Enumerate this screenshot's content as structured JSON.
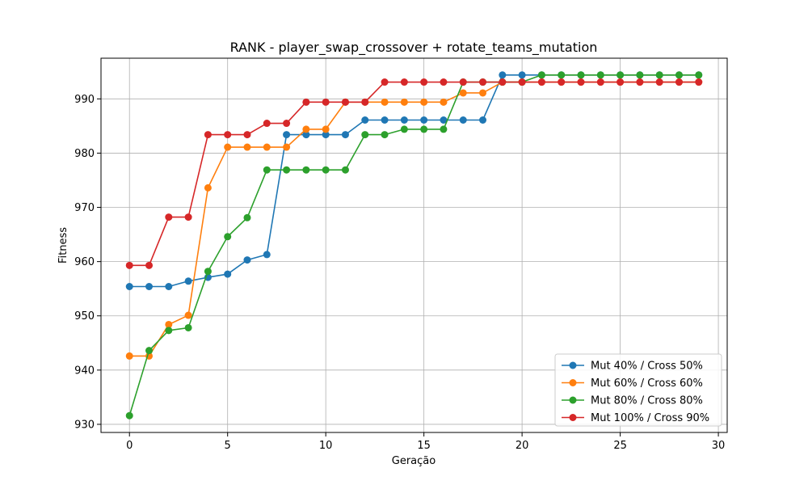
{
  "chart_data": {
    "type": "line",
    "title": "RANK - player_swap_crossover + rotate_teams_mutation",
    "xlabel": "Geração",
    "ylabel": "Fitness",
    "xlim": [
      -1.45,
      30.45
    ],
    "ylim": [
      928.5,
      997.5
    ],
    "xticks": [
      0,
      5,
      10,
      15,
      20,
      25,
      30
    ],
    "yticks": [
      930,
      940,
      950,
      960,
      970,
      980,
      990
    ],
    "grid": true,
    "legend_position": "lower-right",
    "x": [
      0,
      1,
      2,
      3,
      4,
      5,
      6,
      7,
      8,
      9,
      10,
      11,
      12,
      13,
      14,
      15,
      16,
      17,
      18,
      19,
      20,
      21,
      22,
      23,
      24,
      25,
      26,
      27,
      28,
      29
    ],
    "series": [
      {
        "name": "Mut 40% / Cross 50%",
        "color": "#1f77b4",
        "values": [
          955.4,
          955.4,
          955.4,
          956.4,
          957.1,
          957.7,
          960.3,
          961.3,
          983.4,
          983.4,
          983.4,
          983.4,
          986.1,
          986.1,
          986.1,
          986.1,
          986.1,
          986.1,
          986.1,
          994.4,
          994.4,
          994.4,
          994.4,
          994.4,
          994.4,
          994.4,
          994.4,
          994.4,
          994.4,
          994.4
        ]
      },
      {
        "name": "Mut 60% / Cross 60%",
        "color": "#ff7f0e",
        "values": [
          942.6,
          942.6,
          948.4,
          950.1,
          973.6,
          981.1,
          981.1,
          981.1,
          981.1,
          984.4,
          984.4,
          989.4,
          989.4,
          989.4,
          989.4,
          989.4,
          989.4,
          991.1,
          991.1,
          993.1,
          993.1,
          993.1,
          993.1,
          993.1,
          993.1,
          993.1,
          993.1,
          993.1,
          993.1,
          993.1
        ]
      },
      {
        "name": "Mut 80% / Cross 80%",
        "color": "#2ca02c",
        "values": [
          931.6,
          943.6,
          947.3,
          947.8,
          958.2,
          964.6,
          968.1,
          976.9,
          976.9,
          976.9,
          976.9,
          976.9,
          983.4,
          983.4,
          984.4,
          984.4,
          984.4,
          993.1,
          993.1,
          993.1,
          993.1,
          994.4,
          994.4,
          994.4,
          994.4,
          994.4,
          994.4,
          994.4,
          994.4,
          994.4
        ]
      },
      {
        "name": "Mut 100% / Cross 90%",
        "color": "#d62728",
        "values": [
          959.3,
          959.3,
          968.2,
          968.2,
          983.4,
          983.4,
          983.4,
          985.5,
          985.5,
          989.4,
          989.4,
          989.4,
          989.4,
          993.1,
          993.1,
          993.1,
          993.1,
          993.1,
          993.1,
          993.1,
          993.1,
          993.1,
          993.1,
          993.1,
          993.1,
          993.1,
          993.1,
          993.1,
          993.1,
          993.1
        ]
      }
    ]
  }
}
